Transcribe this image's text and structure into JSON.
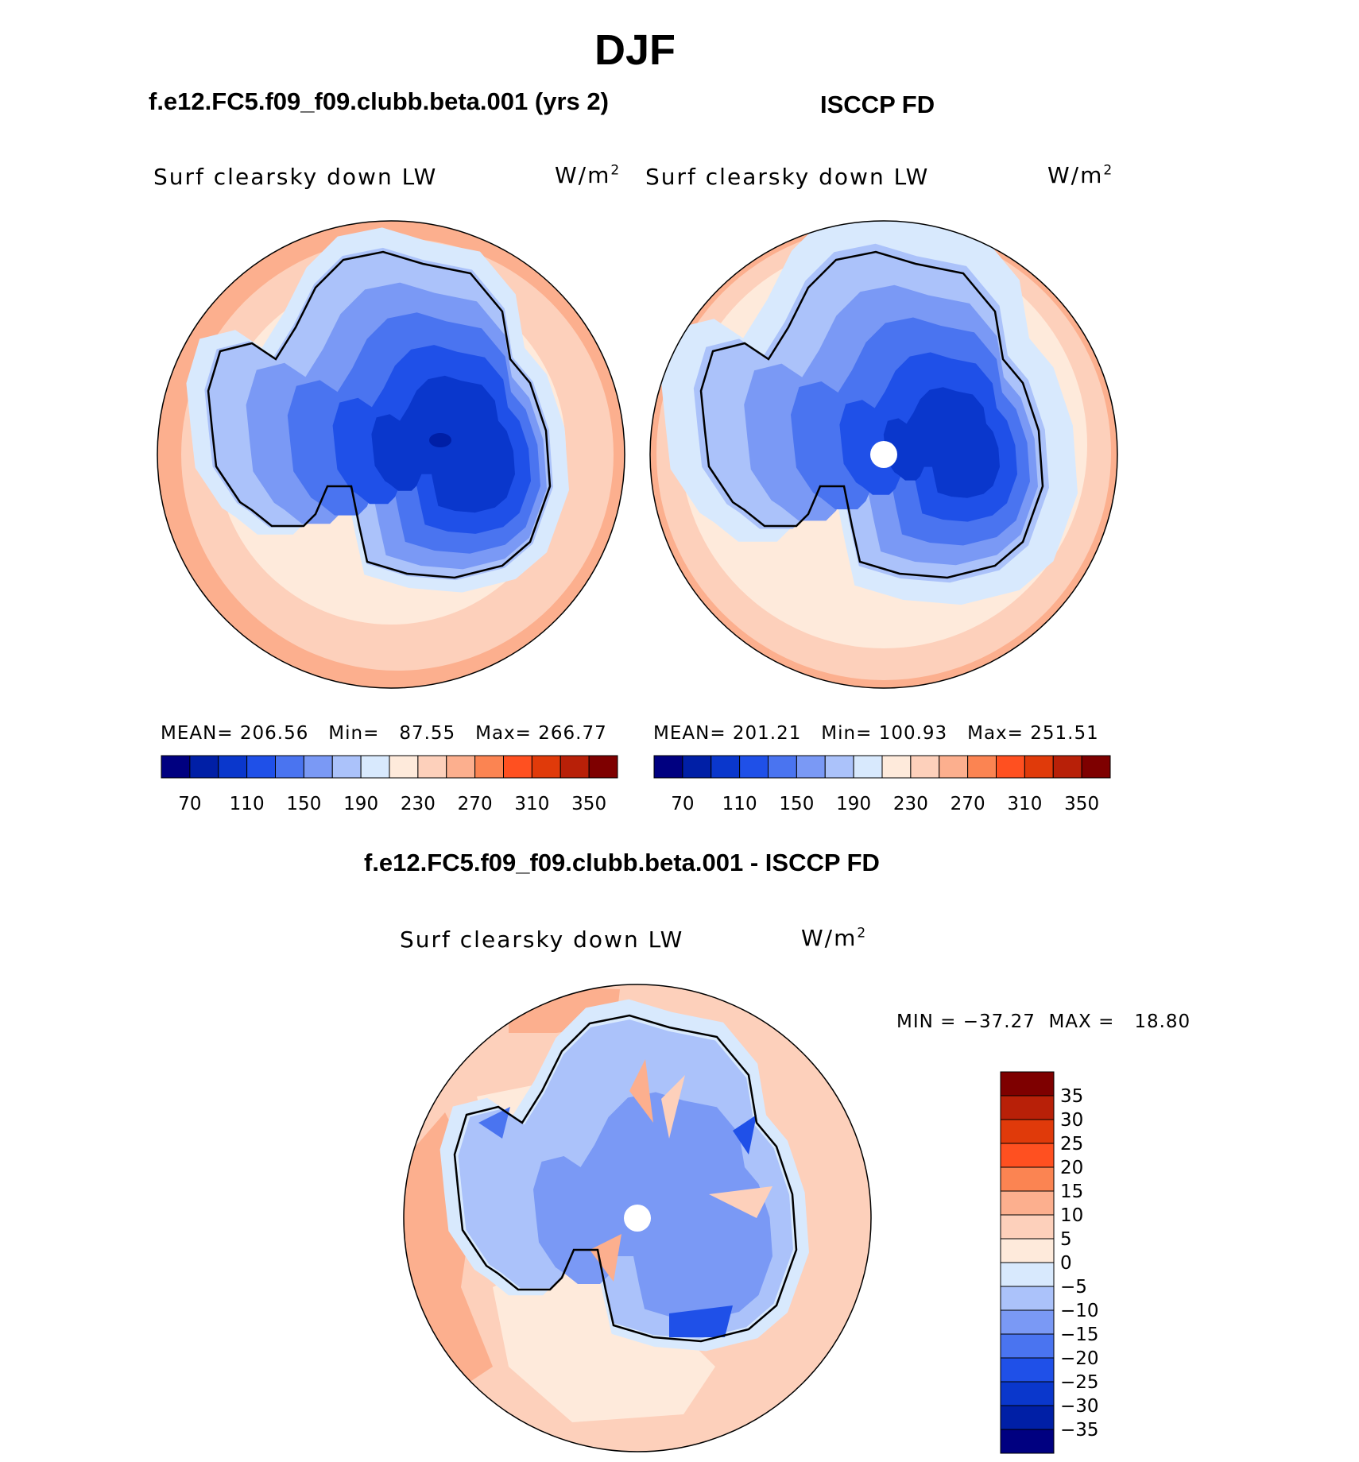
{
  "figure": {
    "season": "DJF",
    "model_title": "f.e12.FC5.f09_f09.clubb.beta.001 (yrs 2)",
    "obs_title": "ISCCP FD",
    "diff_title": "f.e12.FC5.f09_f09.clubb.beta.001 - ISCCP FD"
  },
  "panels": {
    "model": {
      "variable": "Surf clearsky down LW",
      "units": "W/m",
      "units_exp": "2",
      "stats_line": "MEAN= 206.56   Min=   87.55   Max= 266.77"
    },
    "obs": {
      "variable": "Surf clearsky down LW",
      "units": "W/m",
      "units_exp": "2",
      "stats_line": "MEAN= 201.21   Min= 100.93   Max= 251.51"
    },
    "diff": {
      "variable": "Surf clearsky down LW",
      "units": "W/m",
      "units_exp": "2",
      "stats_line": "MIN = −37.27  MAX =   18.80"
    }
  },
  "colorbars": {
    "abs": {
      "colors": [
        "#000080",
        "#001fa6",
        "#0a37cc",
        "#1f50e8",
        "#4a74f0",
        "#7a99f5",
        "#abc2fa",
        "#d8e9fd",
        "#feeadb",
        "#fdd0bb",
        "#fcaf8e",
        "#fb8452",
        "#ff5020",
        "#e03a0a",
        "#b82008",
        "#7e0000"
      ],
      "tick_labels": [
        "70",
        "110",
        "150",
        "190",
        "230",
        "270",
        "310",
        "350"
      ]
    },
    "diff": {
      "colors": [
        "#000080",
        "#001fa6",
        "#0a37cc",
        "#1f50e8",
        "#4a74f0",
        "#7a99f5",
        "#abc2fa",
        "#d8e9fd",
        "#feeadb",
        "#fdd0bb",
        "#fcaf8e",
        "#fb8452",
        "#ff5020",
        "#e03a0a",
        "#b82008",
        "#7e0000"
      ],
      "tick_labels": [
        "−35",
        "−30",
        "−25",
        "−20",
        "−15",
        "−10",
        "−5",
        "0",
        "5",
        "10",
        "15",
        "20",
        "25",
        "30",
        "35"
      ]
    }
  }
}
